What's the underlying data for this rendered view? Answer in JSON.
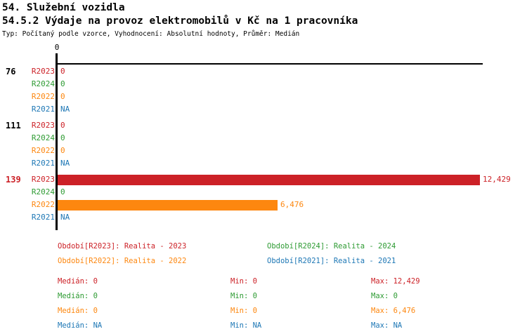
{
  "page": {
    "title1": "54. Služební vozidla",
    "title2": "54.5.2 Výdaje na provoz elektromobilů v Kč na 1 pracovníka",
    "meta": "Typ: Počítaný podle vzorce, Vyhodnocení: Absolutní hodnoty, Průměr: Medián"
  },
  "colors": {
    "red": "#cc2127",
    "green": "#2e9b33",
    "orange": "#fd870f",
    "blue": "#1d77b5"
  },
  "chart_data": {
    "type": "bar",
    "orientation": "horizontal",
    "title": "54.5.2 Výdaje na provoz elektromobilů v Kč na 1 pracovníka",
    "axis_tick_label": "0",
    "xlim": [
      0,
      12530
    ],
    "grid": false,
    "categories": [
      "76",
      "111",
      "139"
    ],
    "series_order": [
      "R2023",
      "R2024",
      "R2022",
      "R2021"
    ],
    "series": [
      {
        "name": "R2023",
        "color": "red",
        "values_by_group": [
          0,
          0,
          12429
        ]
      },
      {
        "name": "R2024",
        "color": "green",
        "values_by_group": [
          0,
          0,
          0
        ]
      },
      {
        "name": "R2022",
        "color": "orange",
        "values_by_group": [
          0,
          0,
          6476
        ]
      },
      {
        "name": "R2021",
        "color": "blue",
        "values_by_group": [
          null,
          null,
          null
        ]
      }
    ],
    "rows": [
      {
        "group_label": "76",
        "series": "R2023",
        "value": 0,
        "display": "0"
      },
      {
        "group_label": "",
        "series": "R2024",
        "value": 0,
        "display": "0"
      },
      {
        "group_label": "",
        "series": "R2022",
        "value": 0,
        "display": "0"
      },
      {
        "group_label": "",
        "series": "R2021",
        "value": null,
        "display": "NA"
      },
      {
        "group_label": "111",
        "series": "R2023",
        "value": 0,
        "display": "0"
      },
      {
        "group_label": "",
        "series": "R2024",
        "value": 0,
        "display": "0"
      },
      {
        "group_label": "",
        "series": "R2022",
        "value": 0,
        "display": "0"
      },
      {
        "group_label": "",
        "series": "R2021",
        "value": null,
        "display": "NA"
      },
      {
        "group_label": "139",
        "series": "R2023",
        "value": 12429,
        "display": "12,429"
      },
      {
        "group_label": "",
        "series": "R2024",
        "value": 0,
        "display": "0"
      },
      {
        "group_label": "",
        "series": "R2022",
        "value": 6476,
        "display": "6,476"
      },
      {
        "group_label": "",
        "series": "R2021",
        "value": null,
        "display": "NA"
      }
    ]
  },
  "legend": {
    "items": [
      {
        "label": "Období[R2023]: Realita - 2023",
        "color": "red"
      },
      {
        "label": "Období[R2024]: Realita - 2024",
        "color": "green"
      },
      {
        "label": "Období[R2022]: Realita - 2022",
        "color": "orange"
      },
      {
        "label": "Období[R2021]: Realita - 2021",
        "color": "blue"
      }
    ]
  },
  "stats": {
    "rows": [
      {
        "median": "Medián: 0",
        "min": "Min: 0",
        "max": "Max: 12,429",
        "color": "red"
      },
      {
        "median": "Medián: 0",
        "min": "Min: 0",
        "max": "Max: 0",
        "color": "green"
      },
      {
        "median": "Medián: 0",
        "min": "Min: 0",
        "max": "Max: 6,476",
        "color": "orange"
      },
      {
        "median": "Medián: NA",
        "min": "Min: NA",
        "max": "Max: NA",
        "color": "blue"
      }
    ]
  }
}
